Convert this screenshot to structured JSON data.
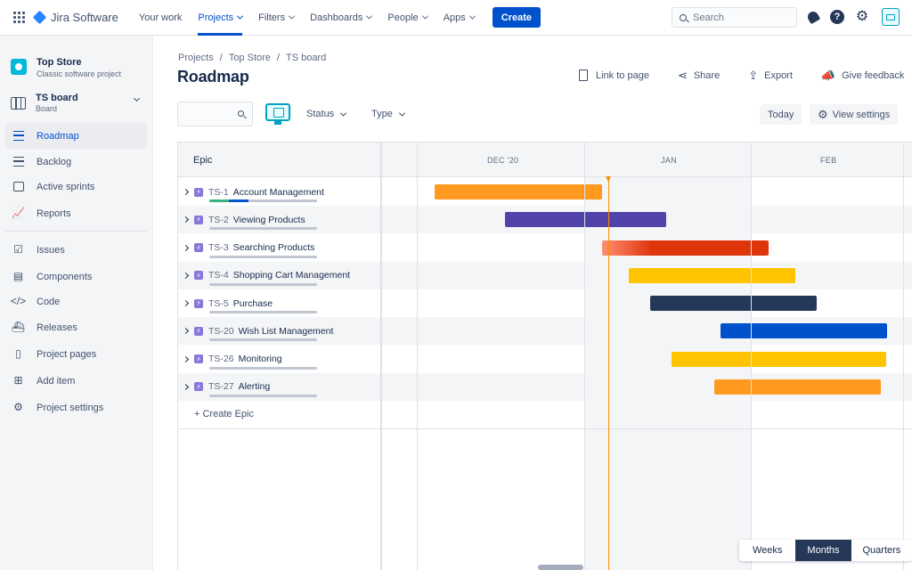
{
  "topnav": {
    "product": "Jira Software",
    "items": [
      {
        "label": "Your work",
        "dropdown": false,
        "active": false
      },
      {
        "label": "Projects",
        "dropdown": true,
        "active": true
      },
      {
        "label": "Filters",
        "dropdown": true,
        "active": false
      },
      {
        "label": "Dashboards",
        "dropdown": true,
        "active": false
      },
      {
        "label": "People",
        "dropdown": true,
        "active": false
      },
      {
        "label": "Apps",
        "dropdown": true,
        "active": false
      }
    ],
    "create_label": "Create",
    "search_placeholder": "Search",
    "icons": [
      "notifications-icon",
      "help-icon",
      "settings-icon",
      "profile-avatar"
    ]
  },
  "sidebar": {
    "project_name": "Top Store",
    "project_type": "Classic software project",
    "board_name": "TS board",
    "board_type": "Board",
    "nav": [
      {
        "label": "Roadmap",
        "icon": "roadmap-icon",
        "active": true
      },
      {
        "label": "Backlog",
        "icon": "backlog-icon",
        "active": false
      },
      {
        "label": "Active sprints",
        "icon": "sprints-icon",
        "active": false
      },
      {
        "label": "Reports",
        "icon": "reports-icon",
        "active": false
      }
    ],
    "nav2": [
      {
        "label": "Issues",
        "icon": "issues-icon"
      },
      {
        "label": "Components",
        "icon": "components-icon"
      },
      {
        "label": "Code",
        "icon": "code-icon"
      },
      {
        "label": "Releases",
        "icon": "releases-icon"
      },
      {
        "label": "Project pages",
        "icon": "pages-icon"
      },
      {
        "label": "Add item",
        "icon": "add-item-icon"
      },
      {
        "label": "Project settings",
        "icon": "settings-icon"
      }
    ]
  },
  "breadcrumb": [
    "Projects",
    "Top Store",
    "TS board"
  ],
  "page_title": "Roadmap",
  "header_actions": {
    "link": "Link to page",
    "share": "Share",
    "export": "Export",
    "feedback": "Give feedback"
  },
  "toolbar": {
    "status_label": "Status",
    "type_label": "Type",
    "today_label": "Today",
    "view_settings_label": "View settings"
  },
  "roadmap": {
    "epic_column_header": "Epic",
    "months": [
      "DEC '20",
      "JAN",
      "FEB"
    ],
    "create_epic_label": "+ Create Epic",
    "epics": [
      {
        "key": "TS-1",
        "name": "Account Management",
        "color": "#ff991f",
        "progress_done": 0.18,
        "progress_in_progress": 0.18
      },
      {
        "key": "TS-2",
        "name": "Viewing Products",
        "color": "#5243aa",
        "progress_done": 0,
        "progress_in_progress": 0
      },
      {
        "key": "TS-3",
        "name": "Searching Products",
        "color": "#de350b",
        "progress_done": 0,
        "progress_in_progress": 0
      },
      {
        "key": "TS-4",
        "name": "Shopping Cart Management",
        "color": "#ffc400",
        "progress_done": 0,
        "progress_in_progress": 0
      },
      {
        "key": "TS-5",
        "name": "Purchase",
        "color": "#253858",
        "progress_done": 0,
        "progress_in_progress": 0
      },
      {
        "key": "TS-20",
        "name": "Wish List Management",
        "color": "#0052cc",
        "progress_done": 0,
        "progress_in_progress": 0
      },
      {
        "key": "TS-26",
        "name": "Monitoring",
        "color": "#ffc400",
        "progress_done": 0,
        "progress_in_progress": 0
      },
      {
        "key": "TS-27",
        "name": "Alerting",
        "color": "#ff991f",
        "progress_done": 0,
        "progress_in_progress": 0
      }
    ]
  },
  "zoom": {
    "options": [
      "Weeks",
      "Months",
      "Quarters"
    ],
    "selected": "Months"
  }
}
